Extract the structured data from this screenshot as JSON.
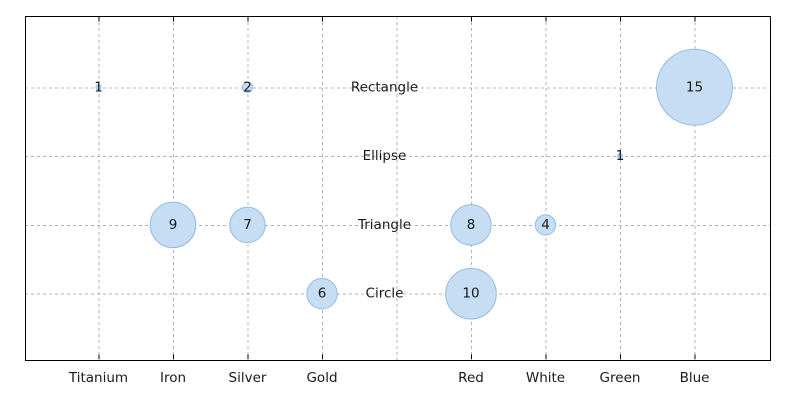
{
  "chart_data": {
    "type": "bubble",
    "x_categories": [
      "Titanium",
      "Iron",
      "Silver",
      "Gold",
      "",
      "Red",
      "White",
      "Green",
      "Blue"
    ],
    "y_categories_top_to_bottom": [
      "Rectangle",
      "Ellipse",
      "Triangle",
      "Circle"
    ],
    "points": [
      {
        "x": "Titanium",
        "y": "Rectangle",
        "value": 1
      },
      {
        "x": "Silver",
        "y": "Rectangle",
        "value": 2
      },
      {
        "x": "Blue",
        "y": "Rectangle",
        "value": 15
      },
      {
        "x": "Green",
        "y": "Ellipse",
        "value": 1
      },
      {
        "x": "Iron",
        "y": "Triangle",
        "value": 9
      },
      {
        "x": "Silver",
        "y": "Triangle",
        "value": 7
      },
      {
        "x": "Red",
        "y": "Triangle",
        "value": 8
      },
      {
        "x": "White",
        "y": "Triangle",
        "value": 4
      },
      {
        "x": "Gold",
        "y": "Circle",
        "value": 6
      },
      {
        "x": "Red",
        "y": "Circle",
        "value": 10
      }
    ],
    "bubble_radius_px_per_unit": 2.53,
    "grid": true,
    "legend": "none",
    "y_labels_position": "inside-center-column",
    "colors": {
      "bubble_fill": "#C6DDF3",
      "bubble_stroke": "#92BBE6",
      "grid_line": "#B3B3B3",
      "axis_border": "#000000",
      "text": "#1A1A1A",
      "background": "#FFFFFF"
    }
  }
}
